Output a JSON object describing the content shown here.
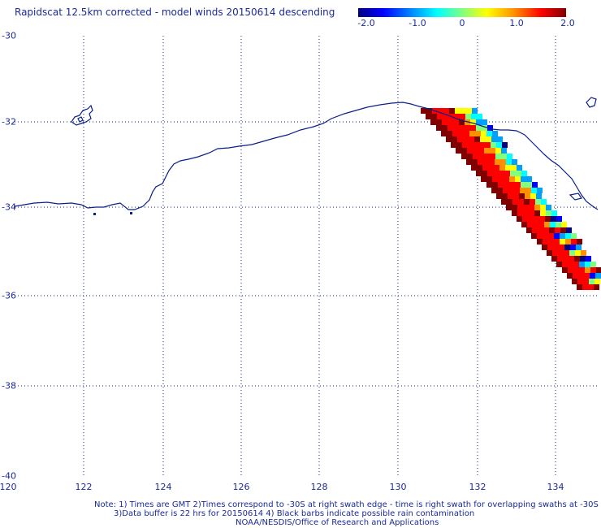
{
  "title": "Rapidscat 12.5km corrected - model winds 20150614 descending",
  "colorbar": {
    "ticks": [
      "-2.0",
      "-1.0",
      "0",
      "1.0",
      "2.0"
    ],
    "colors": [
      "#000080",
      "#0000ff",
      "#00a0ff",
      "#00ffff",
      "#80ff80",
      "#ffff00",
      "#ff9000",
      "#ff0000",
      "#800000"
    ]
  },
  "map": {
    "lat_labels": [
      "-30",
      "-32",
      "-34",
      "-36",
      "-38",
      "-40"
    ],
    "lon_labels": [
      "120",
      "122",
      "124",
      "126",
      "128",
      "130",
      "132",
      "134"
    ],
    "coast_color": "#0b1f8a",
    "grid_color": "#0b1f8a"
  },
  "notes": {
    "line1": "Note: 1) Times are GMT 2)Times correspond to -30S at right swath edge - time is right swath for overlapping swaths at -30S",
    "line2": "3)Data buffer is 22 hrs for 20150614 4) Black barbs indicate possible rain contamination",
    "line3": "NOAA/NESDIS/Office of Research and Applications"
  }
}
